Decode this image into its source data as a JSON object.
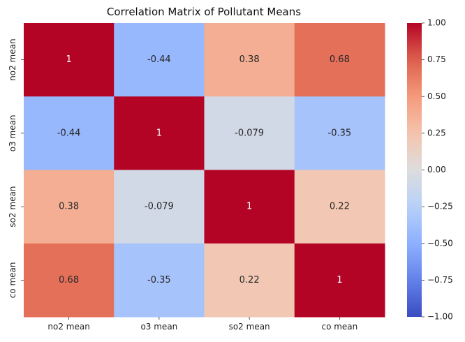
{
  "chart_data": {
    "type": "heatmap",
    "title": "Correlation Matrix of Pollutant Means",
    "rows": [
      "no2 mean",
      "o3 mean",
      "so2 mean",
      "co mean"
    ],
    "columns": [
      "no2 mean",
      "o3 mean",
      "so2 mean",
      "co mean"
    ],
    "values": [
      [
        1,
        -0.44,
        0.38,
        0.68
      ],
      [
        -0.44,
        1,
        -0.079,
        -0.35
      ],
      [
        0.38,
        -0.079,
        1,
        0.22
      ],
      [
        0.68,
        -0.35,
        0.22,
        1
      ]
    ],
    "cell_labels": [
      [
        "1",
        "-0.44",
        "0.38",
        "0.68"
      ],
      [
        "-0.44",
        "1",
        "-0.079",
        "-0.35"
      ],
      [
        "0.38",
        "-0.079",
        "1",
        "0.22"
      ],
      [
        "0.68",
        "-0.35",
        "0.22",
        "1"
      ]
    ],
    "colormap": "coolwarm",
    "vmin": -1,
    "vmax": 1,
    "colorbar_ticks": [
      1.0,
      0.75,
      0.5,
      0.25,
      0.0,
      -0.25,
      -0.5,
      -0.75,
      -1.0
    ],
    "colorbar_tick_labels": [
      "1.00",
      "0.75",
      "0.50",
      "0.25",
      "0.00",
      "−0.25",
      "−0.50",
      "−0.75",
      "−1.00"
    ],
    "xlabel": "",
    "ylabel": "",
    "grid": false,
    "colorbar_placement": "right"
  }
}
